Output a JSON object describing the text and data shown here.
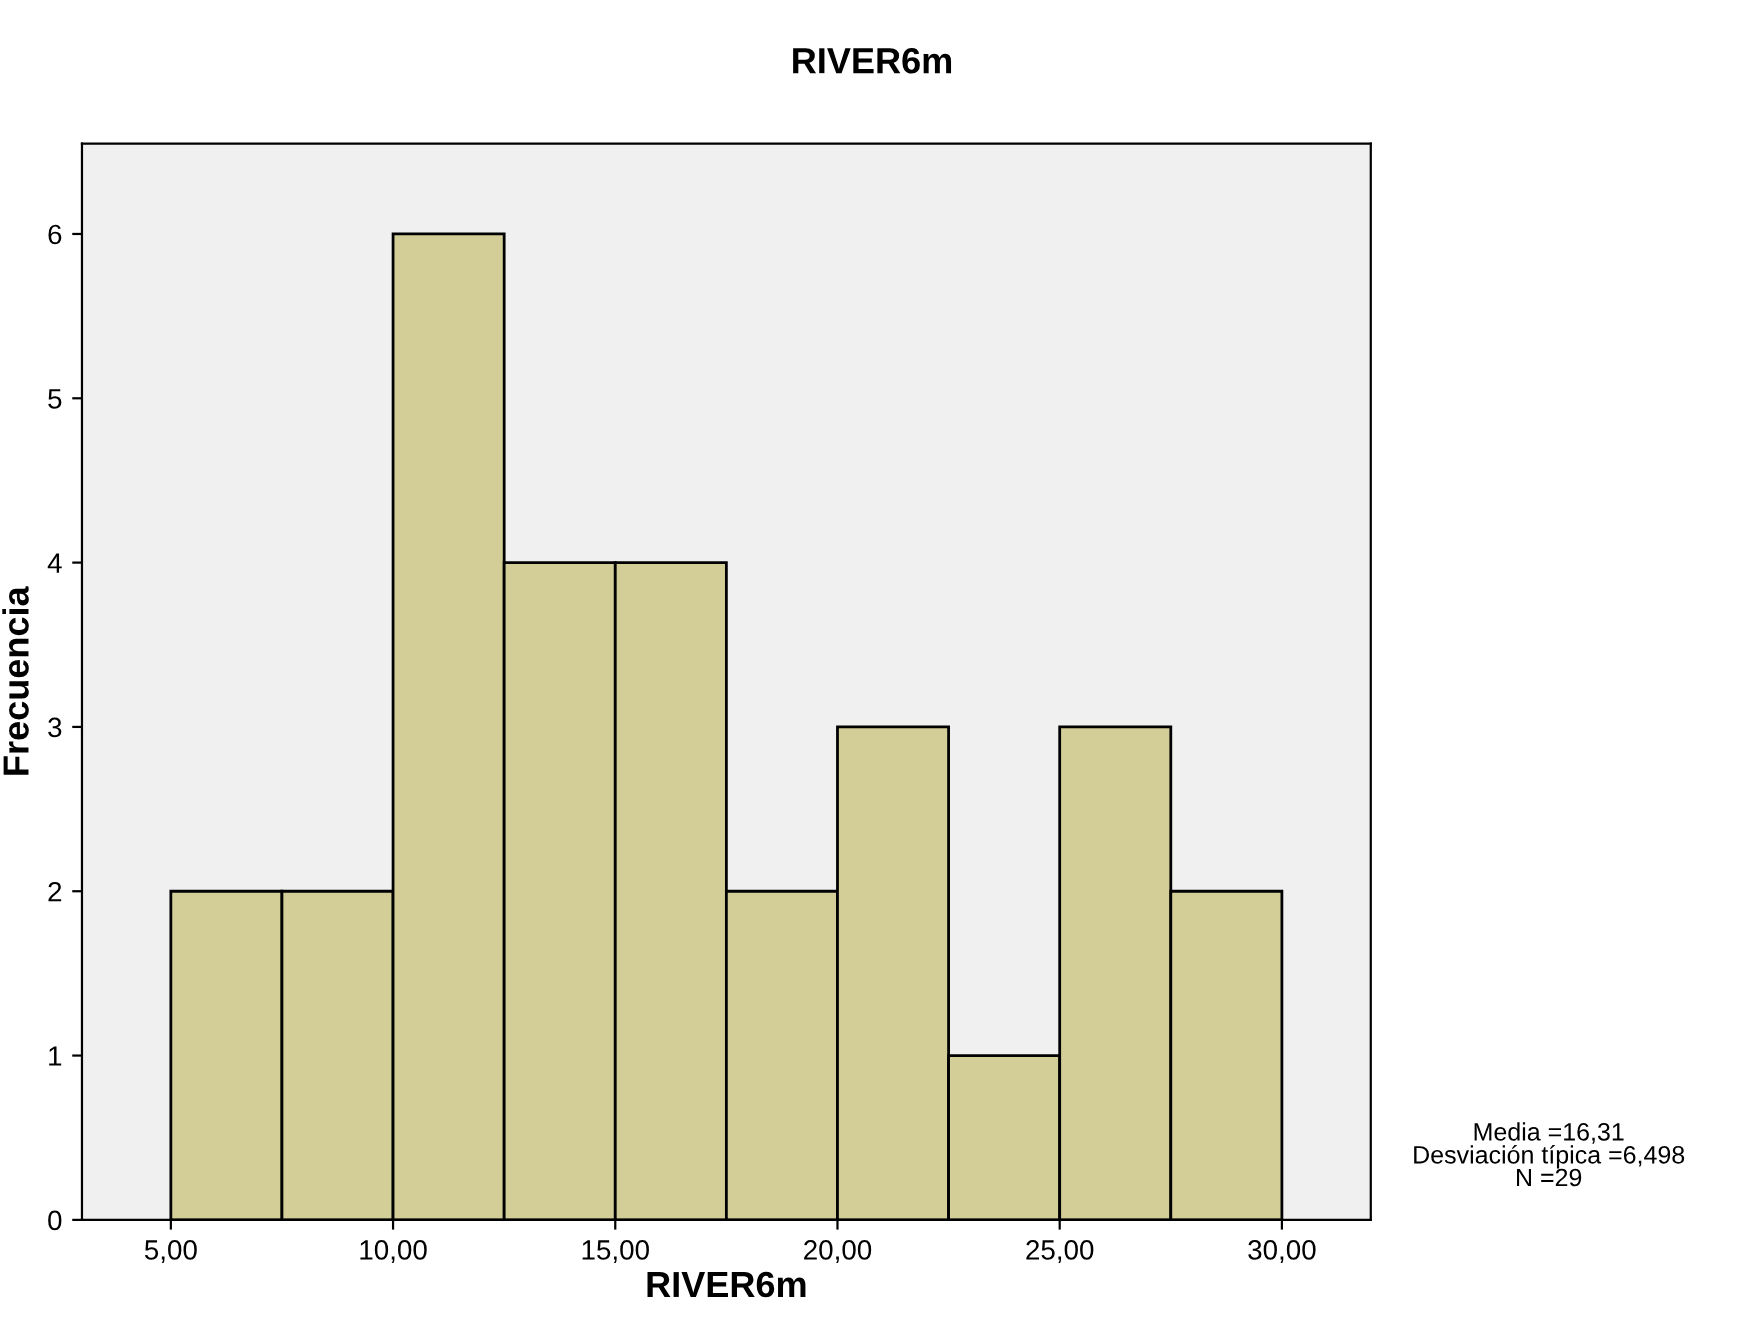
{
  "chart_data": {
    "type": "histogram",
    "title": "RIVER6m",
    "xlabel": "RIVER6m",
    "ylabel": "Frecuencia",
    "bins": [
      5,
      7.5,
      10,
      12.5,
      15,
      17.5,
      20,
      22.5,
      25,
      27.5,
      30
    ],
    "values": [
      2,
      2,
      6,
      4,
      4,
      2,
      3,
      1,
      3,
      2
    ],
    "color": "#d3ce97",
    "xlim": [
      3,
      32
    ],
    "ylim": [
      0,
      6.55
    ],
    "xticks": [
      {
        "value": 5,
        "label": "5,00"
      },
      {
        "value": 10,
        "label": "10,00"
      },
      {
        "value": 15,
        "label": "15,00"
      },
      {
        "value": 20,
        "label": "20,00"
      },
      {
        "value": 25,
        "label": "25,00"
      },
      {
        "value": 30,
        "label": "30,00"
      }
    ],
    "yticks": [
      0,
      1,
      2,
      3,
      4,
      5,
      6
    ],
    "annotations": [
      "Media =16,31",
      "Desviación típica =6,498",
      "N =29"
    ],
    "grid": false,
    "legend": false
  }
}
